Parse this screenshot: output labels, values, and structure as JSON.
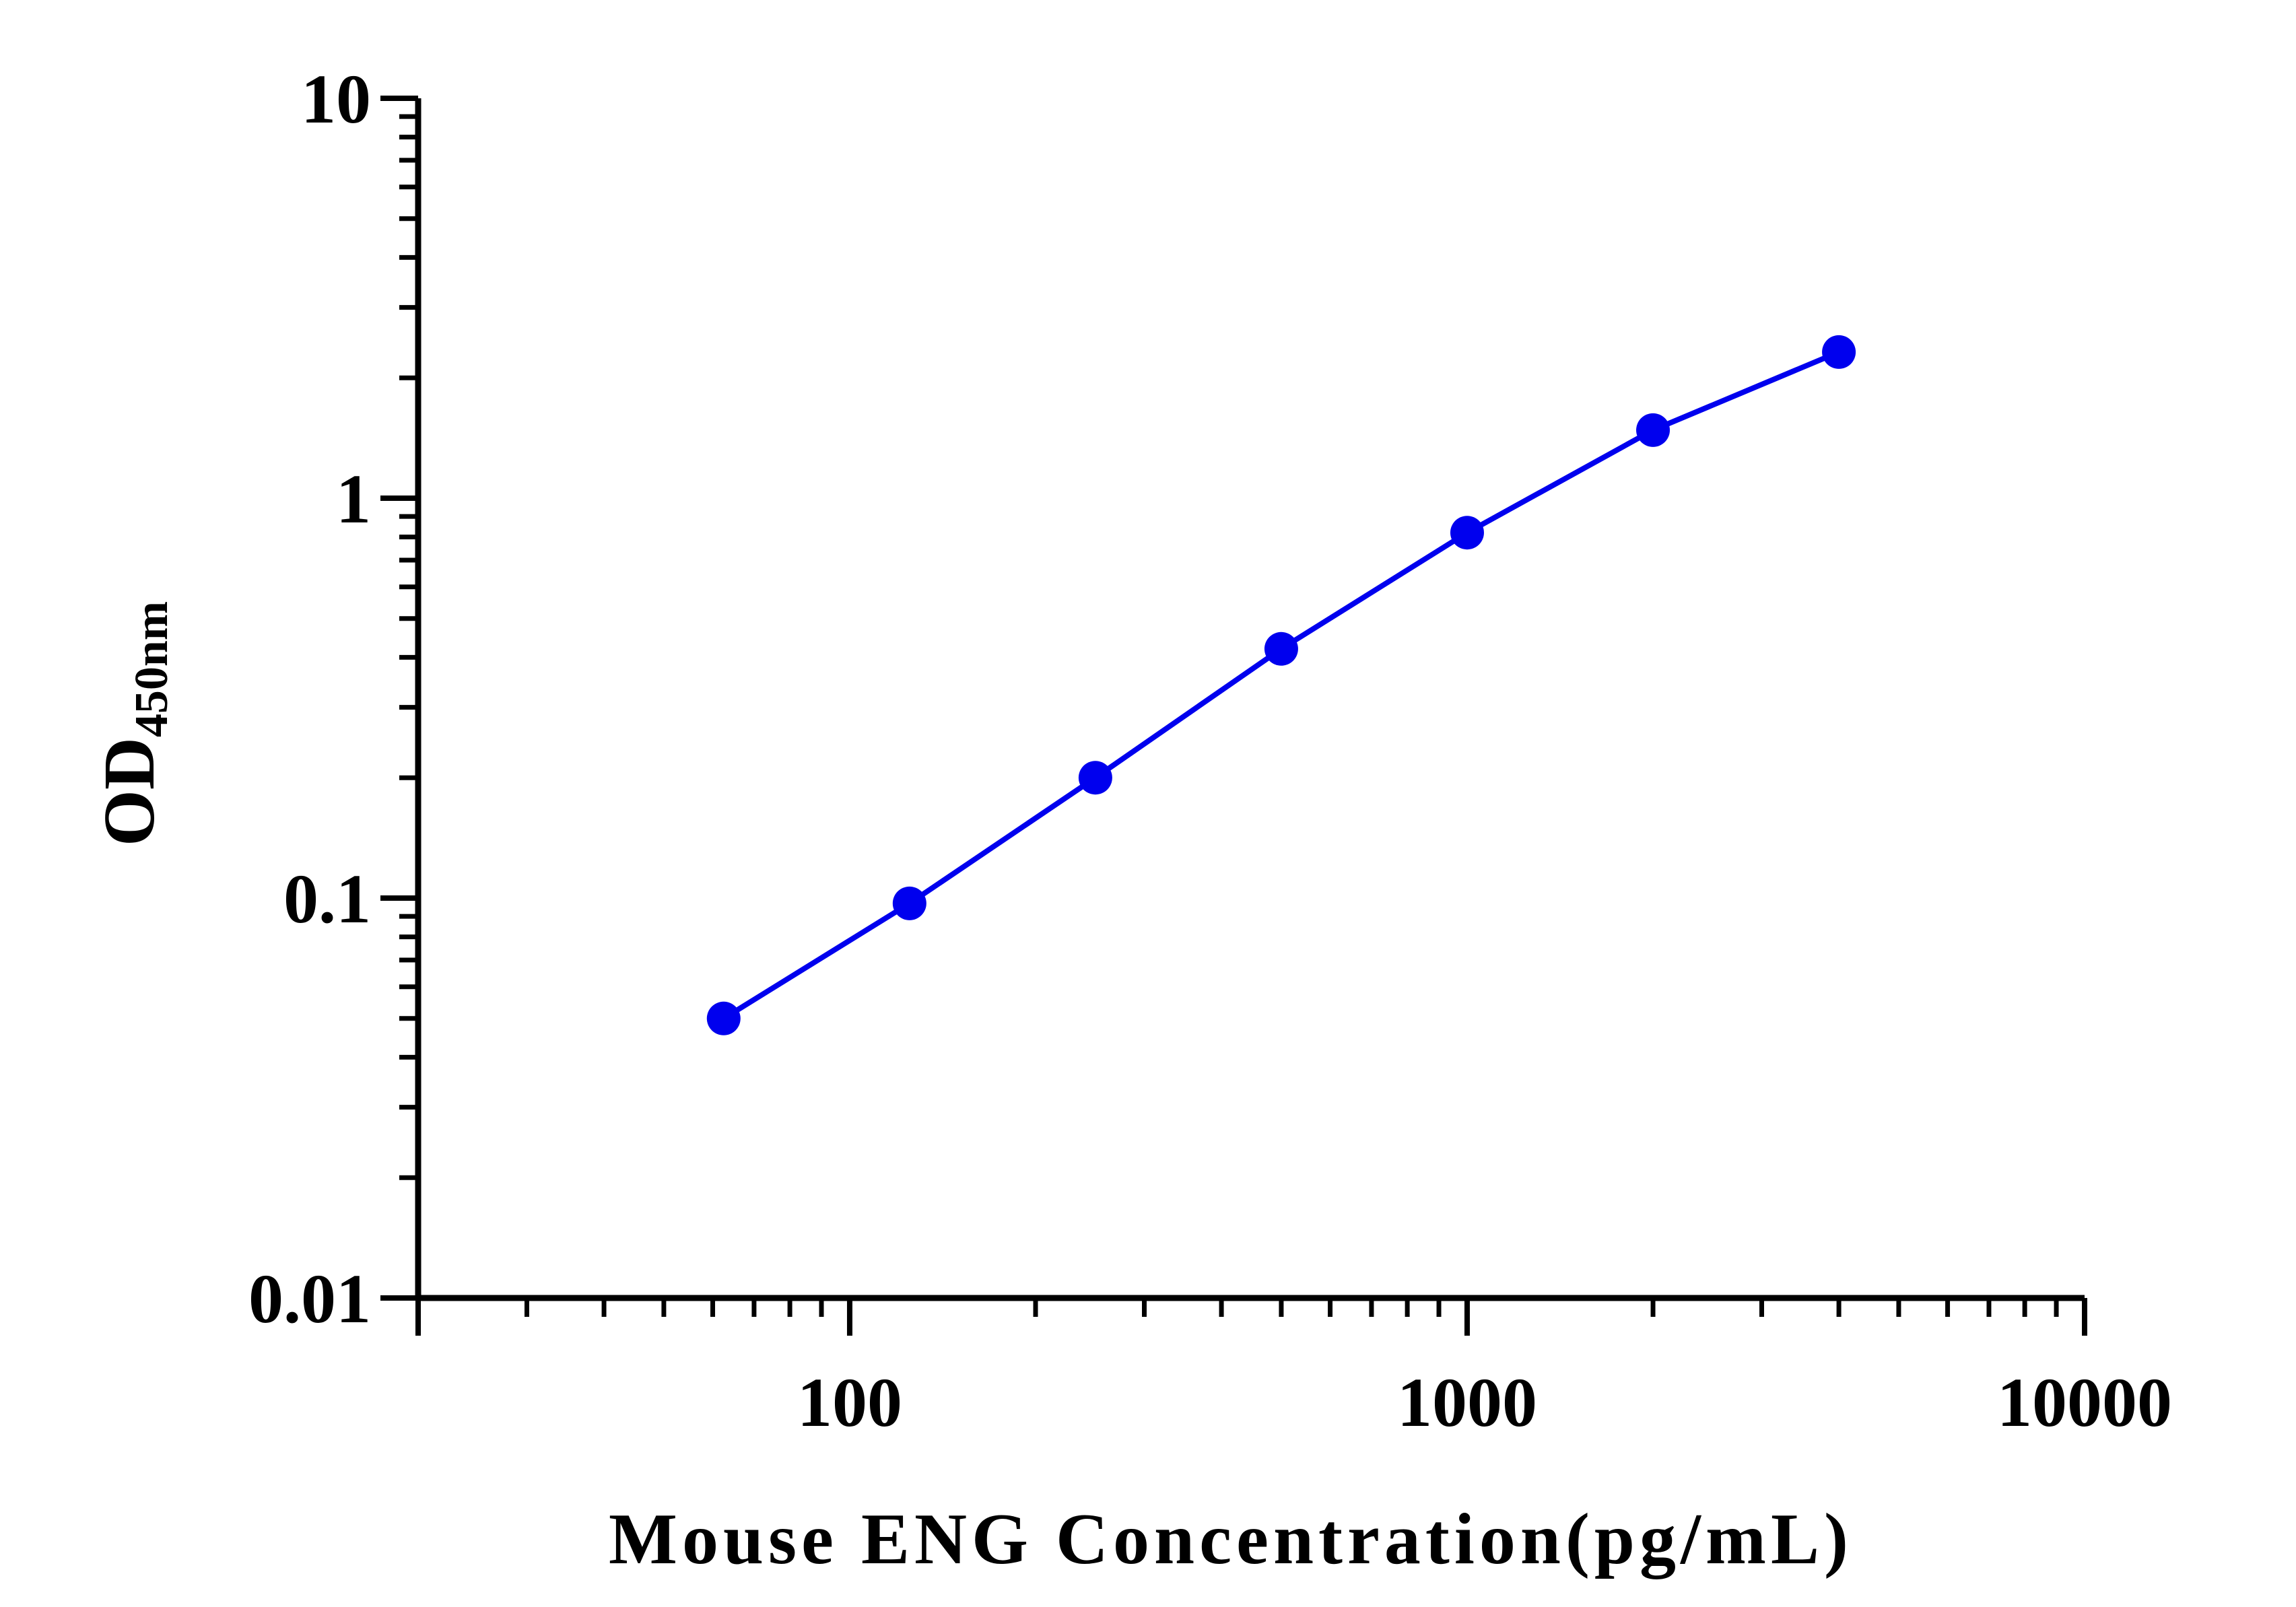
{
  "chart_data": {
    "type": "line",
    "title": "",
    "xlabel": "Mouse ENG Concentration(pg/mL)",
    "ylabel_main": "OD",
    "ylabel_sub": "450nm",
    "x_scale": "log",
    "y_scale": "log",
    "xlim": [
      20,
      10000
    ],
    "ylim": [
      0.01,
      10
    ],
    "x_tick_labels": [
      "100",
      "1000",
      "10000"
    ],
    "y_tick_labels": [
      "0.01",
      "0.1",
      "1",
      "10"
    ],
    "grid": false,
    "legend": "none",
    "series": [
      {
        "color": "#0000ee",
        "marker": "circle",
        "x": [
          62.5,
          125,
          250,
          500,
          1000,
          2000,
          4000
        ],
        "y": [
          0.05,
          0.097,
          0.2,
          0.42,
          0.82,
          1.48,
          2.32
        ]
      }
    ]
  }
}
